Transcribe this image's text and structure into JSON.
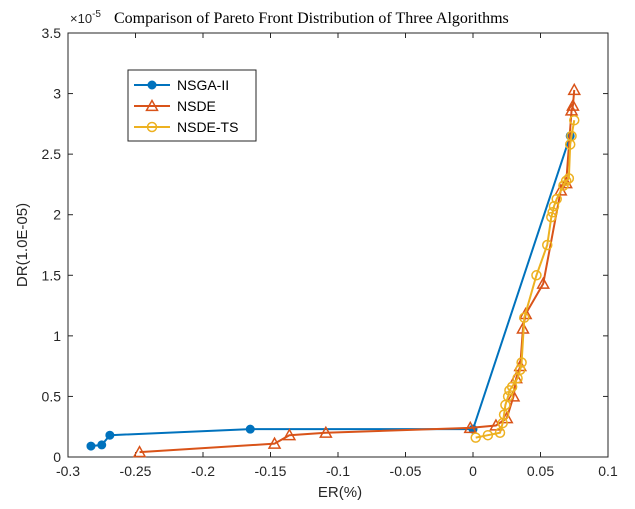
{
  "chart_data": {
    "type": "line",
    "title": "Comparison of Pareto Front Distribution of Three Algorithms",
    "xlabel": "ER(%)",
    "ylabel": "DR(1.0E-05)",
    "y_multiplier_label": "×10",
    "y_multiplier_exponent": "-5",
    "xlim": [
      -0.3,
      0.1
    ],
    "ylim": [
      0,
      3.5
    ],
    "xticks": [
      "-0.3",
      "-0.25",
      "-0.2",
      "-0.15",
      "-0.1",
      "-0.05",
      "0",
      "0.05",
      "0.1"
    ],
    "yticks": [
      "0",
      "0.5",
      "1",
      "1.5",
      "2",
      "2.5",
      "3",
      "3.5"
    ],
    "grid": false,
    "legend_position": "top-left",
    "series": [
      {
        "name": "NSGA-II",
        "color": "#0072BD",
        "marker": "circle-filled",
        "x": [
          -0.283,
          -0.275,
          -0.269,
          -0.165,
          0.0,
          0.072
        ],
        "y": [
          0.09,
          0.1,
          0.18,
          0.23,
          0.23,
          2.65
        ]
      },
      {
        "name": "NSDE",
        "color": "#D95319",
        "marker": "triangle-open",
        "x": [
          -0.247,
          -0.147,
          -0.136,
          -0.109,
          -0.002,
          0.017,
          0.025,
          0.03,
          0.032,
          0.035,
          0.037,
          0.039,
          0.052,
          0.065,
          0.069,
          0.073,
          0.074,
          0.075
        ],
        "y": [
          0.04,
          0.11,
          0.18,
          0.2,
          0.24,
          0.26,
          0.32,
          0.5,
          0.65,
          0.75,
          1.06,
          1.18,
          1.43,
          2.2,
          2.26,
          2.86,
          2.9,
          3.03
        ]
      },
      {
        "name": "NSDE-TS",
        "color": "#EDB120",
        "marker": "circle-open",
        "x": [
          0.002,
          0.011,
          0.02,
          0.022,
          0.023,
          0.024,
          0.026,
          0.027,
          0.029,
          0.033,
          0.035,
          0.036,
          0.038,
          0.047,
          0.055,
          0.058,
          0.059,
          0.06,
          0.062,
          0.067,
          0.069,
          0.071,
          0.072,
          0.073,
          0.075
        ],
        "y": [
          0.16,
          0.18,
          0.2,
          0.28,
          0.35,
          0.43,
          0.5,
          0.55,
          0.58,
          0.65,
          0.72,
          0.78,
          1.15,
          1.5,
          1.75,
          1.98,
          2.02,
          2.07,
          2.13,
          2.24,
          2.28,
          2.3,
          2.58,
          2.65,
          2.78
        ]
      }
    ]
  }
}
